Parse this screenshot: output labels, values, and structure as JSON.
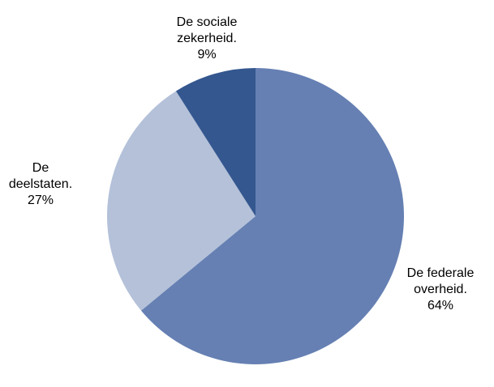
{
  "chart_data": {
    "type": "pie",
    "categories": [
      "De federale overheid.",
      "De deelstaten.",
      "De sociale zekerheid."
    ],
    "values": [
      64,
      27,
      9
    ],
    "value_labels": [
      "64%",
      "27%",
      "9%"
    ],
    "colors": [
      "#6680b3",
      "#b4c1d9",
      "#34578f"
    ],
    "start_angle": 0,
    "direction": "clockwise"
  }
}
